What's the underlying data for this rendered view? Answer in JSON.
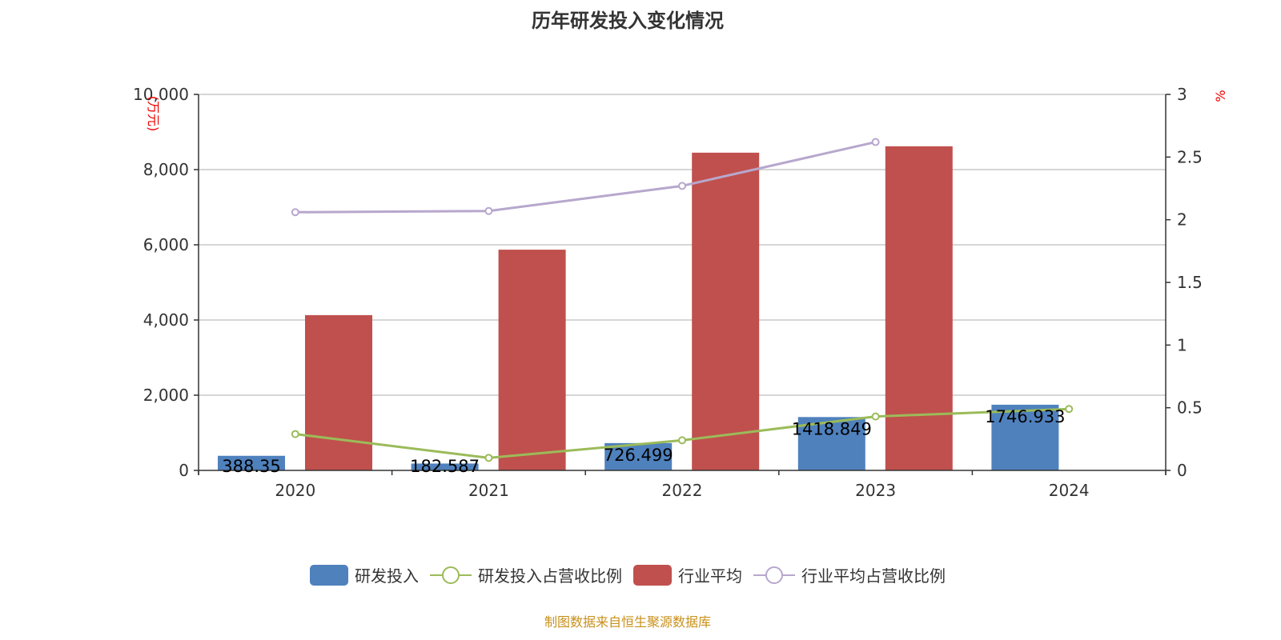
{
  "chart_data": {
    "type": "bar",
    "title": "历年研发投入变化情况",
    "categories": [
      "2020",
      "2021",
      "2022",
      "2023",
      "2024"
    ],
    "y_left": {
      "label": "(万元)",
      "ticks": [
        "0",
        "2,000",
        "4,000",
        "6,000",
        "8,000",
        "10,000"
      ],
      "range": [
        0,
        10000
      ]
    },
    "y_right": {
      "label": "%",
      "ticks": [
        "0",
        "0.5",
        "1",
        "1.5",
        "2",
        "2.5",
        "3"
      ],
      "range": [
        0,
        3
      ]
    },
    "series": [
      {
        "name": "研发投入",
        "type": "bar",
        "axis": "left",
        "color": "#4f81bd",
        "values": [
          388.35,
          182.587,
          726.499,
          1418.849,
          1746.933
        ],
        "labels": [
          "388.35",
          "182.587",
          "726.499",
          "1418.849",
          "1746.933"
        ]
      },
      {
        "name": "研发投入占营收比例",
        "type": "line",
        "axis": "right",
        "color": "#9bbb59",
        "values": [
          0.29,
          0.1,
          0.24,
          0.43,
          0.49
        ]
      },
      {
        "name": "行业平均",
        "type": "bar",
        "axis": "left",
        "color": "#c0504d",
        "values": [
          4130,
          5870,
          8450,
          8620,
          null
        ]
      },
      {
        "name": "行业平均占营收比例",
        "type": "line",
        "axis": "right",
        "color": "#b7a7cc",
        "values": [
          2.06,
          2.07,
          2.27,
          2.62,
          null
        ]
      }
    ],
    "grid": true,
    "legend_position": "bottom"
  },
  "source": "制图数据来自恒生聚源数据库"
}
